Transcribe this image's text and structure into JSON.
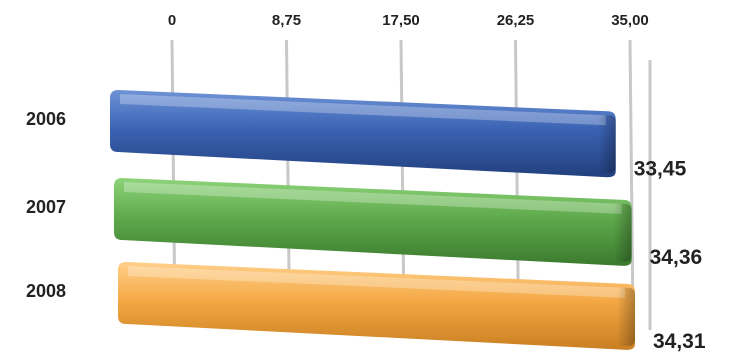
{
  "chart_data": {
    "type": "bar",
    "orientation": "horizontal",
    "style": "3d-perspective",
    "categories": [
      "2006",
      "2007",
      "2008"
    ],
    "values": [
      33.45,
      34.36,
      34.31
    ],
    "value_labels": [
      "33,45",
      "34,36",
      "34,31"
    ],
    "tick_labels": [
      "0",
      "8,75",
      "17,50",
      "26,25",
      "35,00"
    ],
    "xlim": [
      0,
      35
    ],
    "axis_position": "top",
    "grid": true,
    "legend": "none",
    "title": "",
    "xlabel": "",
    "ylabel": "",
    "colors": [
      "#3b63b4",
      "#5faa4c",
      "#f4a844"
    ]
  }
}
